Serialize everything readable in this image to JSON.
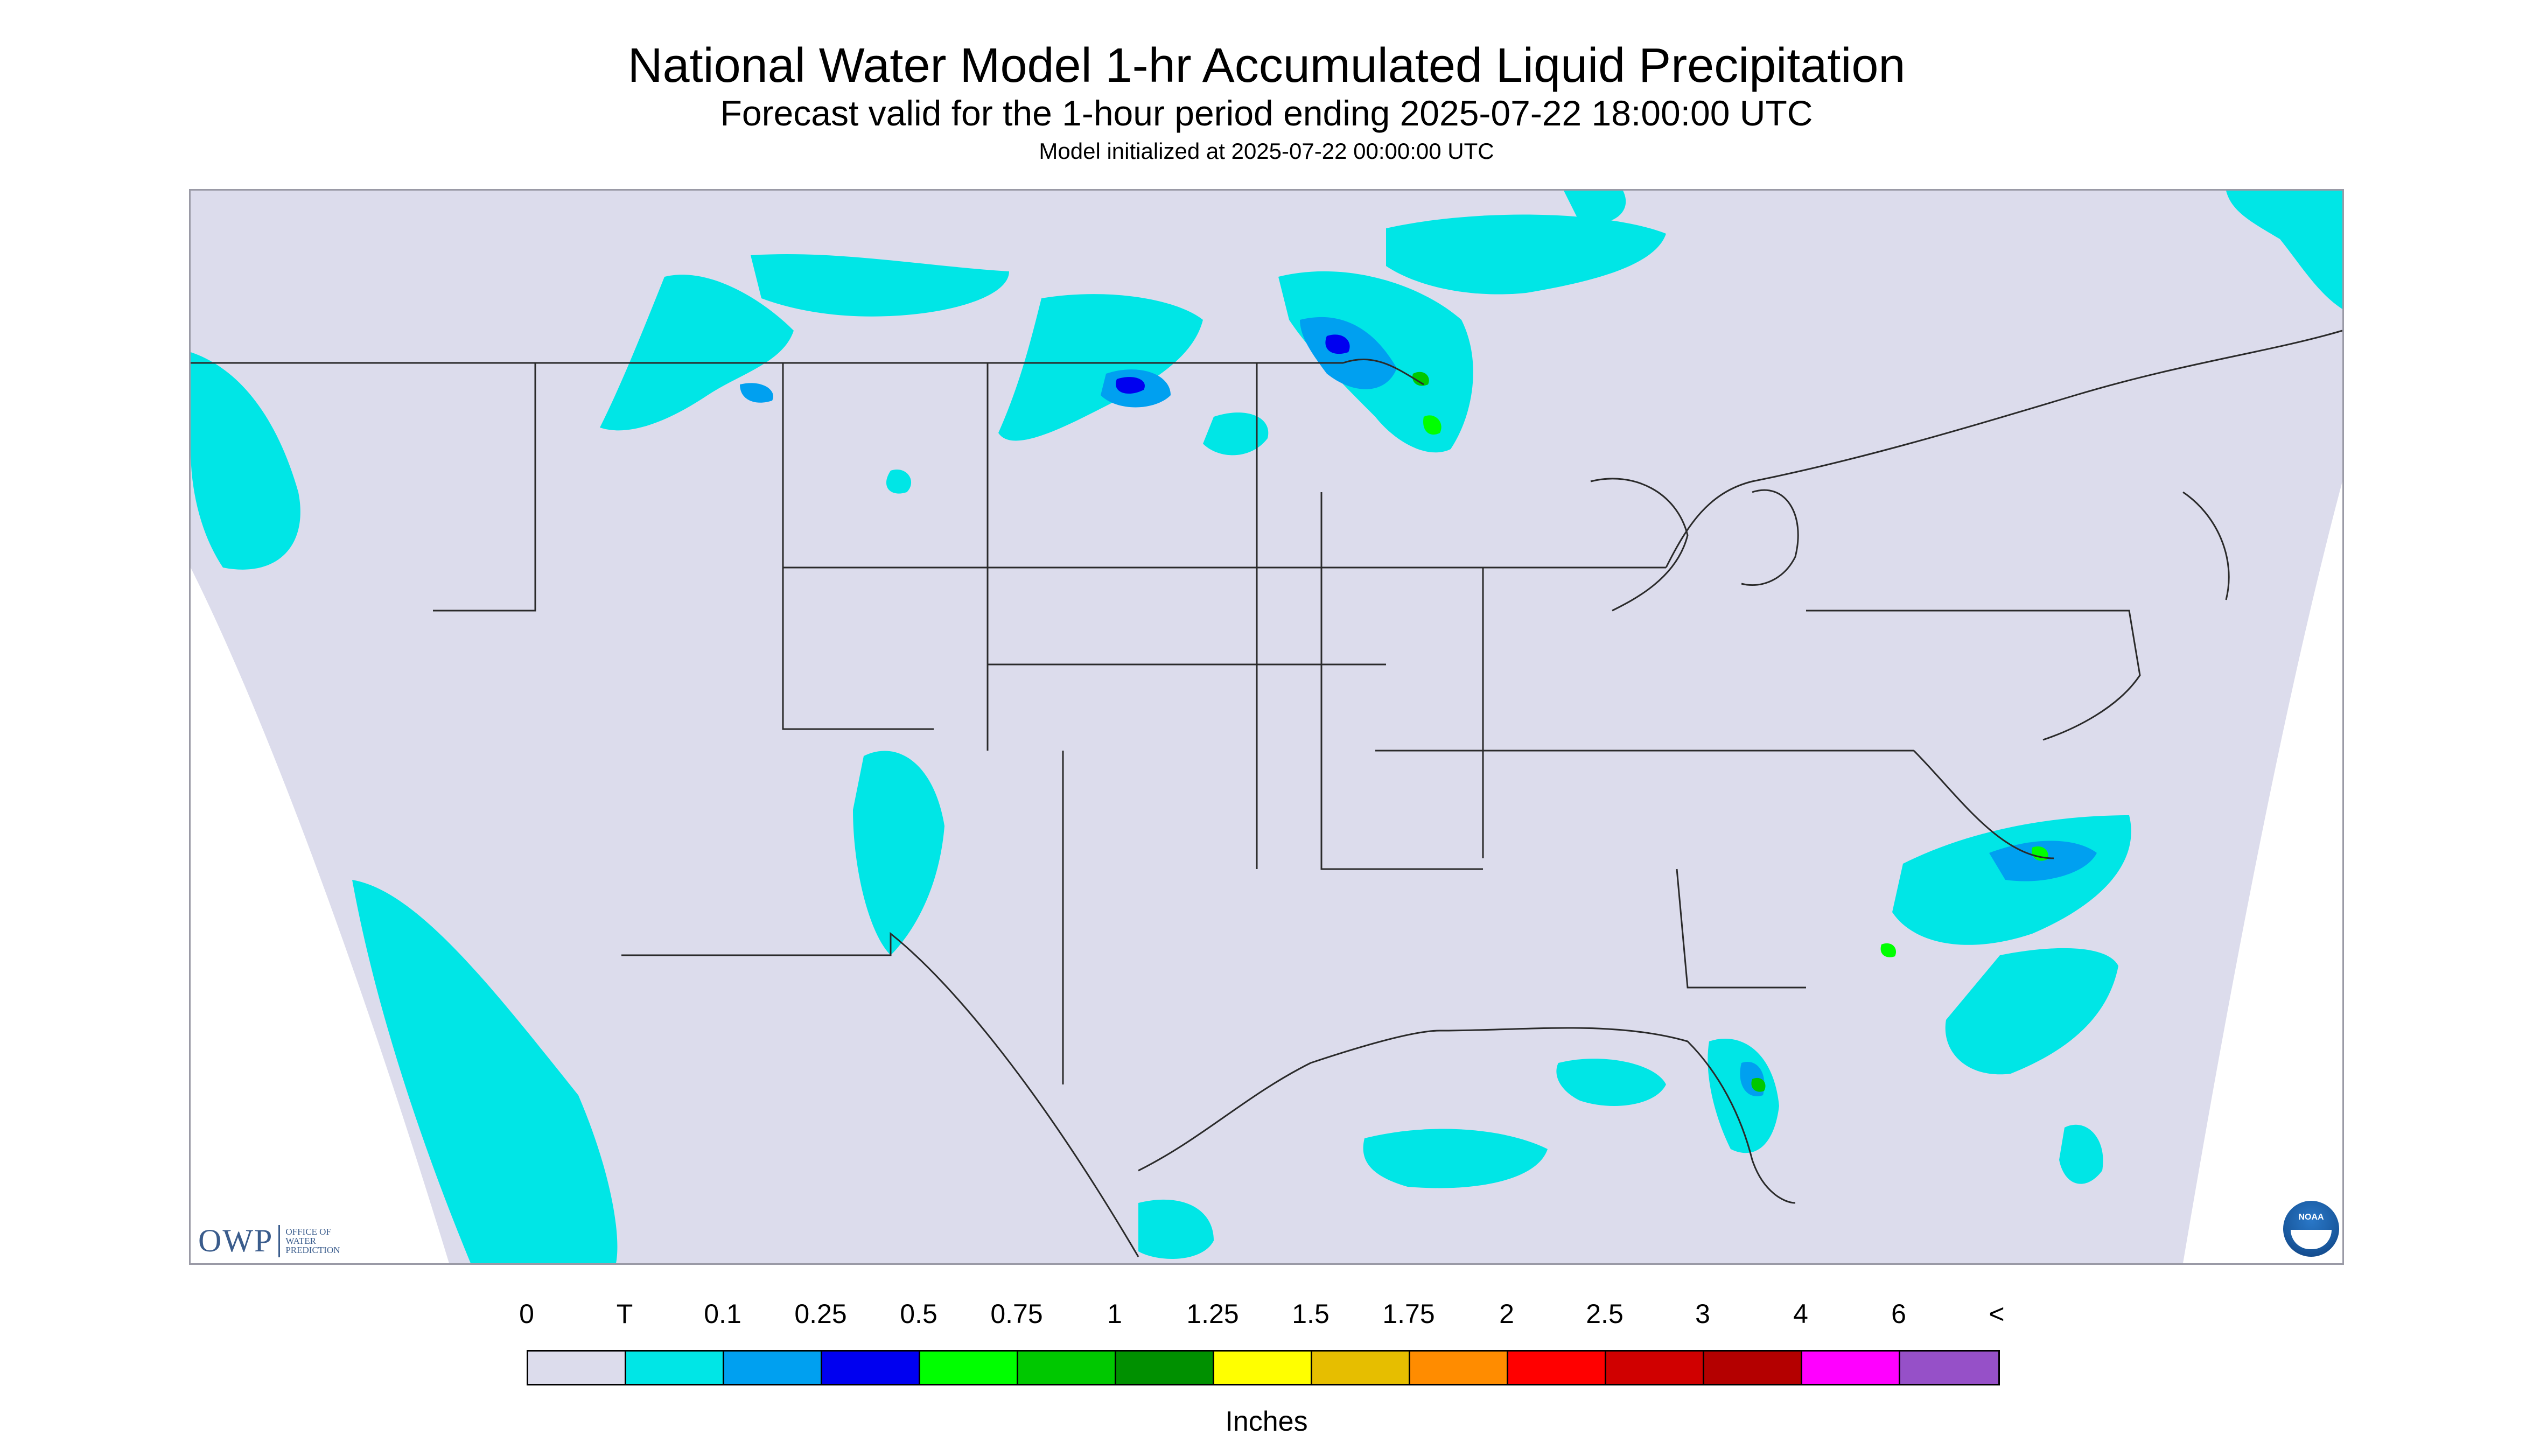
{
  "header": {
    "title": "National Water Model 1-hr Accumulated Liquid Precipitation",
    "subtitle": "Forecast valid for the 1-hour period ending 2025-07-22 18:00:00 UTC",
    "init": "Model initialized at 2025-07-22 00:00:00 UTC"
  },
  "map": {
    "background_color": "#dcdcec",
    "outside_color": "#ffffff",
    "boundary_color": "#2a2a2a"
  },
  "logos": {
    "owp_letters": "OWP",
    "owp_words": "OFFICE OF WATER PREDICTION",
    "noaa_text": "NOAA"
  },
  "legend": {
    "units": "Inches",
    "labels": [
      "0",
      "T",
      "0.1",
      "0.25",
      "0.5",
      "0.75",
      "1",
      "1.25",
      "1.5",
      "1.75",
      "2",
      "2.5",
      "3",
      "4",
      "6",
      "<"
    ],
    "colors": [
      "#dcdcec",
      "#00e6e6",
      "#00a0f0",
      "#0000f0",
      "#00ff00",
      "#00c800",
      "#009000",
      "#ffff00",
      "#e6be00",
      "#ff8c00",
      "#ff0000",
      "#d00000",
      "#b40000",
      "#ff00ff",
      "#9650c8"
    ]
  }
}
